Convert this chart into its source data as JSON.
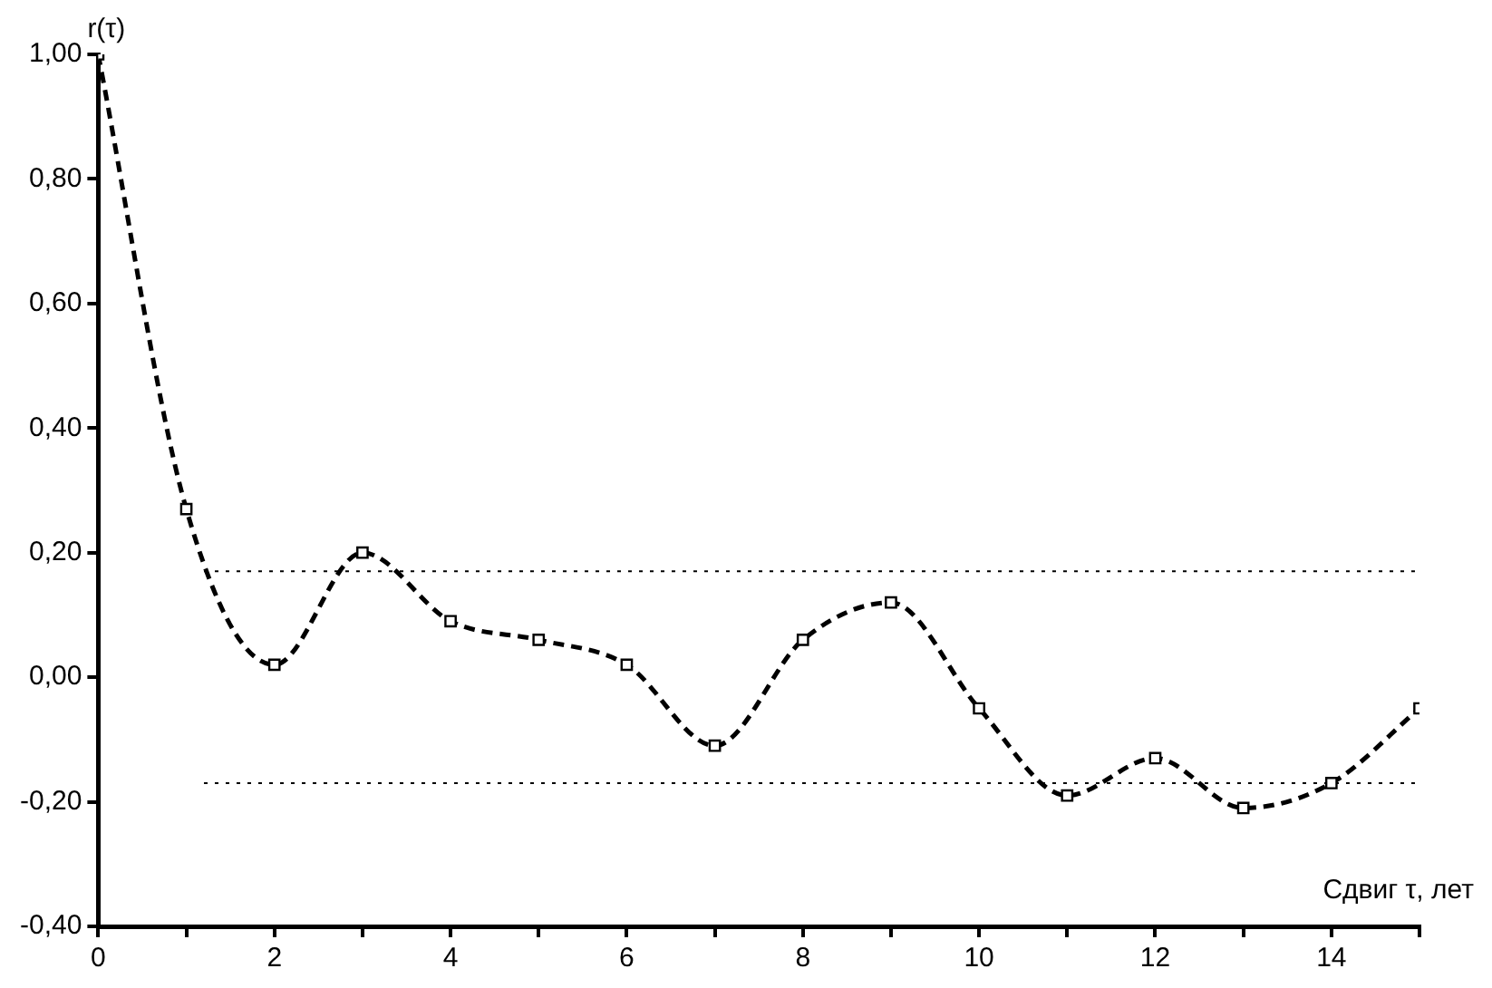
{
  "chart_data": {
    "type": "line",
    "xlabel": "Сдвиг τ, лет",
    "ylabel": "r(τ)",
    "x": [
      0,
      1,
      2,
      3,
      4,
      5,
      6,
      7,
      8,
      9,
      10,
      11,
      12,
      13,
      14,
      15
    ],
    "series": [
      {
        "color": "#000000",
        "values": [
          1.0,
          0.27,
          0.02,
          0.2,
          0.09,
          0.06,
          0.02,
          -0.11,
          0.06,
          0.12,
          -0.05,
          -0.19,
          -0.13,
          -0.21,
          -0.17,
          -0.05
        ]
      }
    ],
    "xlim": [
      0,
      15
    ],
    "xticks": [
      0,
      {
        "value": 1,
        "label": null
      },
      2,
      {
        "value": 3,
        "label": null
      },
      4,
      {
        "value": 5,
        "label": null
      },
      6,
      {
        "value": 7,
        "label": null
      },
      8,
      {
        "value": 9,
        "label": null
      },
      10,
      {
        "value": 11,
        "label": null
      },
      12,
      {
        "value": 13,
        "label": null
      },
      14,
      {
        "value": 15,
        "label": null
      }
    ],
    "ylim": [
      -0.4,
      1.0
    ],
    "yticks": [
      {
        "value": -0.4,
        "label": "-0,40"
      },
      {
        "value": -0.2,
        "label": "-0,20"
      },
      {
        "value": 0,
        "label": "0,00"
      },
      {
        "value": 0.2,
        "label": "0,20"
      },
      {
        "value": 0.4,
        "label": "0,40"
      },
      {
        "value": 0.6,
        "label": "0,60"
      },
      {
        "value": 0.8,
        "label": "0,80"
      },
      {
        "value": 1.0,
        "label": "1,00"
      }
    ],
    "ref_lines": [
      {
        "axis": "y",
        "value": 0.17,
        "color": "#000000",
        "line_style": "dotted"
      },
      {
        "axis": "y",
        "value": -0.17,
        "color": "#000000",
        "line_style": "dotted"
      }
    ],
    "grid": false,
    "legend": false,
    "marker": "square",
    "line_style": "dashed"
  }
}
